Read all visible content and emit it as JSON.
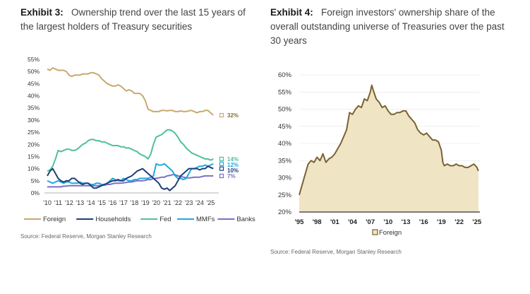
{
  "exhibit3": {
    "label": "Exhibit 3:",
    "title": "Ownership trend over the last 15 years of the largest holders of Treasury securities",
    "source": "Source: Federal Reserve, Morgan Stanley Research"
  },
  "exhibit4": {
    "label": "Exhibit 4:",
    "title": "Foreign investors' ownership share of the overall outstanding universe of Treasuries over the past 30 years",
    "source": "Source: Federal Reserve, Morgan Stanley Research"
  },
  "chart_data": [
    {
      "type": "line",
      "ylim": [
        0,
        55
      ],
      "yticks": [
        "0%",
        "5%",
        "10%",
        "15%",
        "20%",
        "25%",
        "30%",
        "35%",
        "40%",
        "45%",
        "50%",
        "55%"
      ],
      "xlim": [
        2010,
        2025.75
      ],
      "xticks": [
        "'10",
        "'11",
        "'12",
        "'13",
        "'14",
        "'15",
        "'16",
        "'17",
        "'18",
        "'19",
        "'20",
        "'21",
        "'22",
        "'23",
        "'24",
        "'25"
      ],
      "series": [
        {
          "name": "Foreign",
          "color": "#c9a96e",
          "end_label": "32%",
          "x": [
            2010,
            2010.25,
            2010.5,
            2010.75,
            2011,
            2011.25,
            2011.5,
            2011.75,
            2012,
            2012.25,
            2012.5,
            2012.75,
            2013,
            2013.25,
            2013.5,
            2013.75,
            2014,
            2014.25,
            2014.5,
            2014.75,
            2015,
            2015.25,
            2015.5,
            2015.75,
            2016,
            2016.25,
            2016.5,
            2016.75,
            2017,
            2017.25,
            2017.5,
            2017.75,
            2018,
            2018.25,
            2018.5,
            2018.75,
            2019,
            2019.25,
            2019.5,
            2019.75,
            2020,
            2020.25,
            2020.5,
            2020.75,
            2021,
            2021.25,
            2021.5,
            2021.75,
            2022,
            2022.25,
            2022.5,
            2022.75,
            2023,
            2023.25,
            2023.5,
            2023.75,
            2024,
            2024.25,
            2024.5,
            2024.75,
            2025,
            2025.25
          ],
          "y": [
            51,
            50.5,
            51.5,
            51,
            50.5,
            50.5,
            50.5,
            50,
            48.5,
            48,
            48.5,
            48.5,
            48.5,
            49,
            49,
            49,
            49.5,
            49.5,
            49,
            48.5,
            47,
            46,
            45,
            44.5,
            44,
            44,
            44.5,
            44,
            43,
            42,
            42.5,
            42,
            41,
            41,
            41,
            40,
            38,
            34.5,
            34,
            33.5,
            33.5,
            33.5,
            34,
            34,
            33.8,
            34,
            34,
            33.5,
            33.5,
            33.8,
            33.5,
            33.5,
            33.8,
            34,
            33.5,
            33,
            33.5,
            33.5,
            34,
            34,
            33,
            32
          ]
        },
        {
          "name": "Households",
          "color": "#1f3f7a",
          "end_label": "10%",
          "x": [
            2010,
            2010.25,
            2010.5,
            2010.75,
            2011,
            2011.25,
            2011.5,
            2011.75,
            2012,
            2012.25,
            2012.5,
            2012.75,
            2013,
            2013.25,
            2013.5,
            2013.75,
            2014,
            2014.25,
            2014.5,
            2014.75,
            2015,
            2015.25,
            2015.5,
            2015.75,
            2016,
            2016.25,
            2016.5,
            2016.75,
            2017,
            2017.25,
            2017.5,
            2017.75,
            2018,
            2018.25,
            2018.5,
            2018.75,
            2019,
            2019.25,
            2019.5,
            2019.75,
            2020,
            2020.25,
            2020.5,
            2020.75,
            2021,
            2021.25,
            2021.5,
            2021.75,
            2022,
            2022.25,
            2022.5,
            2022.75,
            2023,
            2023.25,
            2023.5,
            2023.75,
            2024,
            2024.25,
            2024.5,
            2024.75,
            2025,
            2025.25
          ],
          "y": [
            7,
            9,
            10,
            8,
            6,
            5,
            4.5,
            5,
            5,
            6,
            6,
            5,
            4,
            3.5,
            4,
            4,
            3,
            2,
            2,
            2.5,
            3,
            3.5,
            4,
            4.5,
            5,
            5,
            5.5,
            5,
            5,
            6,
            6.5,
            7,
            8,
            9,
            9.5,
            10,
            9,
            8,
            7,
            6,
            5,
            4,
            2,
            1.5,
            2,
            1,
            2,
            3,
            5,
            7,
            8,
            9,
            10,
            10,
            10,
            10,
            9.5,
            10,
            10,
            11,
            10.5,
            10
          ]
        },
        {
          "name": "Fed",
          "color": "#4fbf9f",
          "end_label": "14%",
          "x": [
            2010,
            2010.25,
            2010.5,
            2010.75,
            2011,
            2011.25,
            2011.5,
            2011.75,
            2012,
            2012.25,
            2012.5,
            2012.75,
            2013,
            2013.25,
            2013.5,
            2013.75,
            2014,
            2014.25,
            2014.5,
            2014.75,
            2015,
            2015.25,
            2015.5,
            2015.75,
            2016,
            2016.25,
            2016.5,
            2016.75,
            2017,
            2017.25,
            2017.5,
            2017.75,
            2018,
            2018.25,
            2018.5,
            2018.75,
            2019,
            2019.25,
            2019.5,
            2019.75,
            2020,
            2020.25,
            2020.5,
            2020.75,
            2021,
            2021.25,
            2021.5,
            2021.75,
            2022,
            2022.25,
            2022.5,
            2022.75,
            2023,
            2023.25,
            2023.5,
            2023.75,
            2024,
            2024.25,
            2024.5,
            2024.75,
            2025,
            2025.25
          ],
          "y": [
            9,
            9.5,
            11,
            14,
            17.5,
            17,
            17.5,
            18,
            18,
            17.5,
            17.5,
            18,
            19,
            20,
            20.5,
            21.5,
            22,
            22,
            21.5,
            21.5,
            21,
            21,
            20.5,
            20,
            19.5,
            19.5,
            19.5,
            19,
            19,
            18.5,
            18.5,
            18,
            17.5,
            17,
            16,
            15.5,
            15,
            14,
            16,
            20,
            23,
            23.5,
            24,
            25,
            26,
            26,
            25.5,
            24.5,
            23,
            21,
            20,
            18.5,
            17.5,
            16.5,
            16,
            15.5,
            15,
            14.5,
            14,
            14,
            13.5,
            14
          ]
        },
        {
          "name": "MMFs",
          "color": "#21a9db",
          "end_label": "12%",
          "x": [
            2010,
            2010.25,
            2010.5,
            2010.75,
            2011,
            2011.25,
            2011.5,
            2011.75,
            2012,
            2012.25,
            2012.5,
            2012.75,
            2013,
            2013.25,
            2013.5,
            2013.75,
            2014,
            2014.25,
            2014.5,
            2014.75,
            2015,
            2015.25,
            2015.5,
            2015.75,
            2016,
            2016.25,
            2016.5,
            2016.75,
            2017,
            2017.25,
            2017.5,
            2017.75,
            2018,
            2018.25,
            2018.5,
            2018.75,
            2019,
            2019.25,
            2019.5,
            2019.75,
            2020,
            2020.25,
            2020.5,
            2020.75,
            2021,
            2021.25,
            2021.5,
            2021.75,
            2022,
            2022.25,
            2022.5,
            2022.75,
            2023,
            2023.25,
            2023.5,
            2023.75,
            2024,
            2024.25,
            2024.5,
            2024.75,
            2025,
            2025.25
          ],
          "y": [
            5,
            4.5,
            4,
            4.5,
            5,
            4.5,
            4,
            4.5,
            4.5,
            4,
            4,
            4,
            4.5,
            4,
            4,
            4,
            3.5,
            3.5,
            4,
            4,
            3.5,
            3.5,
            4,
            5,
            6,
            5.5,
            5,
            5,
            6,
            5.5,
            5,
            5,
            5.5,
            5.5,
            6,
            6,
            6,
            6,
            6.5,
            7,
            12,
            11.5,
            11.5,
            12,
            11,
            10,
            9,
            7,
            6,
            6,
            5.5,
            6,
            8,
            10,
            10,
            10.5,
            11,
            11,
            11.5,
            11,
            11.5,
            12
          ]
        },
        {
          "name": "Banks",
          "color": "#7b6fc4",
          "end_label": "7%",
          "x": [
            2010,
            2010.25,
            2010.5,
            2010.75,
            2011,
            2011.25,
            2011.5,
            2011.75,
            2012,
            2012.25,
            2012.5,
            2012.75,
            2013,
            2013.25,
            2013.5,
            2013.75,
            2014,
            2014.25,
            2014.5,
            2014.75,
            2015,
            2015.25,
            2015.5,
            2015.75,
            2016,
            2016.25,
            2016.5,
            2016.75,
            2017,
            2017.25,
            2017.5,
            2017.75,
            2018,
            2018.25,
            2018.5,
            2018.75,
            2019,
            2019.25,
            2019.5,
            2019.75,
            2020,
            2020.25,
            2020.5,
            2020.75,
            2021,
            2021.25,
            2021.5,
            2021.75,
            2022,
            2022.25,
            2022.5,
            2022.75,
            2023,
            2023.25,
            2023.5,
            2023.75,
            2024,
            2024.25,
            2024.5,
            2024.75,
            2025,
            2025.25
          ],
          "y": [
            2.5,
            2.5,
            2.5,
            2.5,
            2.5,
            2.5,
            2.8,
            2.8,
            3,
            3,
            3,
            3,
            3,
            3,
            3,
            3,
            3,
            3,
            3,
            3,
            3.2,
            3.2,
            3.5,
            3.5,
            3.8,
            4,
            4,
            4,
            4.2,
            4.3,
            4.5,
            4.5,
            4.8,
            5,
            5,
            5,
            5.2,
            5.5,
            5.5,
            6,
            6,
            6.2,
            6.5,
            6.5,
            7,
            7.2,
            7.5,
            7.5,
            7,
            6.8,
            6.5,
            6.3,
            6.2,
            6.3,
            6.5,
            6.5,
            6.5,
            6.8,
            7,
            7,
            7,
            7
          ]
        }
      ]
    },
    {
      "type": "area",
      "ylim": [
        20,
        60
      ],
      "yticks": [
        "20%",
        "25%",
        "30%",
        "35%",
        "40%",
        "45%",
        "50%",
        "55%",
        "60%"
      ],
      "xlim": [
        1995,
        2025.5
      ],
      "xticks": [
        "'95",
        "'98",
        "'01",
        "'04",
        "'07",
        "'10",
        "'13",
        "'16",
        "'19",
        "'22",
        "'25"
      ],
      "series": [
        {
          "name": "Foreign",
          "color": "#7a6232",
          "fill": "#efe4c4",
          "x": [
            1995,
            1995.5,
            1996,
            1996.5,
            1997,
            1997.5,
            1998,
            1998.5,
            1999,
            1999.5,
            2000,
            2000.5,
            2001,
            2001.5,
            2002,
            2002.5,
            2003,
            2003.5,
            2004,
            2004.5,
            2005,
            2005.5,
            2006,
            2006.5,
            2007,
            2007.25,
            2007.5,
            2008,
            2008.5,
            2009,
            2009.5,
            2010,
            2010.5,
            2011,
            2011.5,
            2012,
            2012.5,
            2013,
            2013.5,
            2014,
            2014.5,
            2015,
            2015.5,
            2016,
            2016.5,
            2017,
            2017.5,
            2018,
            2018.5,
            2019,
            2019.25,
            2019.5,
            2020,
            2020.5,
            2021,
            2021.5,
            2022,
            2022.5,
            2023,
            2023.5,
            2024,
            2024.5,
            2025,
            2025.25
          ],
          "y": [
            25,
            28,
            31,
            34,
            35,
            34.5,
            36,
            35,
            37,
            34.5,
            35.5,
            36,
            37,
            38.5,
            40,
            42,
            44,
            49,
            48.5,
            50,
            51,
            50.5,
            53,
            52.5,
            55,
            57,
            55.5,
            53,
            52,
            50.5,
            51,
            49.5,
            48.5,
            48.5,
            49,
            49,
            49.5,
            49.5,
            48,
            47,
            46,
            44,
            43,
            42.5,
            43,
            42,
            41,
            41,
            40.5,
            38,
            34.5,
            33.5,
            34,
            33.5,
            33.5,
            34,
            33.5,
            33.5,
            33,
            33,
            33.5,
            34,
            33,
            32
          ]
        }
      ]
    }
  ]
}
